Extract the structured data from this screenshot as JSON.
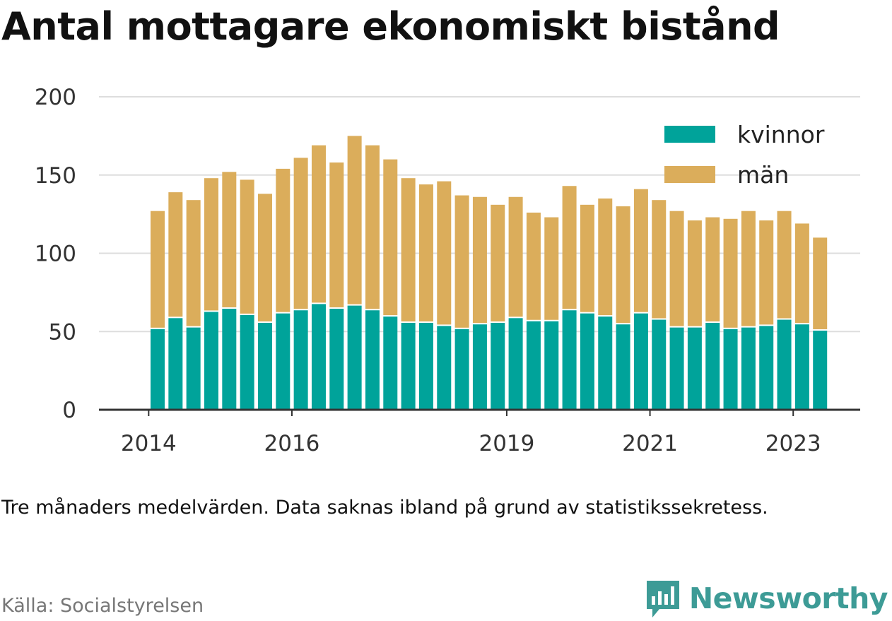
{
  "title": "Antal mottagare ekonomiskt bistånd",
  "note": "Tre månaders medelvärden. Data saknas ibland på grund av statistikssekretess.",
  "source": "Källa: Socialstyrelsen",
  "brand": {
    "name": "Newsworthy",
    "icon": "newsworthy-logo-icon",
    "color": "#3d9b96"
  },
  "chart_data": {
    "type": "bar",
    "stacked": true,
    "grid": true,
    "legend_position": "top-right",
    "ylim": [
      0,
      200
    ],
    "yticks": [
      0,
      50,
      100,
      150,
      200
    ],
    "xticks": [
      {
        "label": "2014",
        "index": -1
      },
      {
        "label": "2016",
        "index": 7
      },
      {
        "label": "2019",
        "index": 19
      },
      {
        "label": "2021",
        "index": 27
      },
      {
        "label": "2023",
        "index": 35
      }
    ],
    "series": [
      {
        "name": "kvinnor",
        "color": "#00a39a",
        "values": [
          52,
          59,
          53,
          63,
          65,
          61,
          56,
          62,
          64,
          68,
          65,
          67,
          64,
          60,
          56,
          56,
          54,
          52,
          55,
          56,
          59,
          57,
          57,
          64,
          62,
          60,
          55,
          62,
          58,
          53,
          53,
          56,
          52,
          53,
          54,
          58,
          55,
          51
        ]
      },
      {
        "name": "män",
        "color": "#dbad5b",
        "values": [
          75,
          80,
          81,
          85,
          87,
          86,
          82,
          92,
          97,
          101,
          93,
          108,
          105,
          100,
          92,
          88,
          92,
          85,
          81,
          75,
          77,
          69,
          66,
          79,
          69,
          75,
          75,
          79,
          76,
          74,
          68,
          67,
          70,
          74,
          67,
          69,
          64,
          59
        ]
      }
    ]
  }
}
